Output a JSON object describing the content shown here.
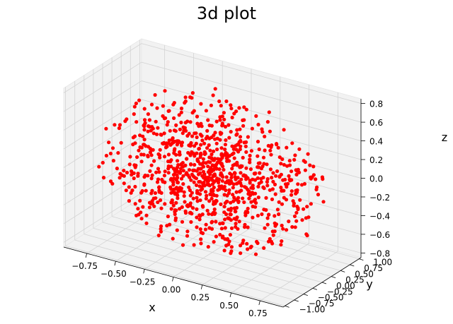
{
  "chart_data": {
    "type": "scatter",
    "projection": "3d",
    "title": "3d plot",
    "xlabel": "x",
    "ylabel": "y",
    "zlabel": "z",
    "xlim": [
      -0.95,
      0.95
    ],
    "ylim": [
      -1.05,
      1.05
    ],
    "zlim": [
      -0.85,
      0.85
    ],
    "x_ticks": [
      "−0.75",
      "−0.50",
      "−0.25",
      "0.00",
      "0.25",
      "0.50",
      "0.75"
    ],
    "y_ticks": [
      "−1.00",
      "−0.75",
      "−0.50",
      "−0.25",
      "0.00",
      "0.25",
      "0.50",
      "0.75",
      "1.00"
    ],
    "z_ticks": [
      "−0.8",
      "−0.6",
      "−0.4",
      "−0.2",
      "0.0",
      "0.2",
      "0.4",
      "0.6",
      "0.8"
    ],
    "grid": true,
    "marker_color": "#ff0000",
    "pane_color": "#f2f2f2",
    "grid_color": "#d3d3d3",
    "series": [
      {
        "distribution": "random points, approximately uniform within a sphere of radius 1 centered at the origin (dense near center)",
        "count": 1000,
        "points": []
      }
    ]
  }
}
